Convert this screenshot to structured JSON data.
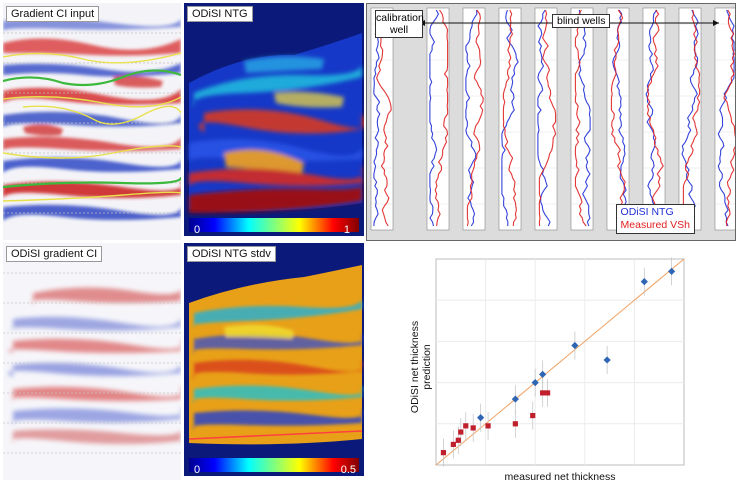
{
  "panels": {
    "gradient_ci_input": {
      "label": "Gradient CI input"
    },
    "odisi_ntg": {
      "label": "ODiSI NTG",
      "cbar_min": "0",
      "cbar_max": "1"
    },
    "odisi_gradient_ci": {
      "label": "ODiSI gradient CI"
    },
    "odisi_ntg_stdv": {
      "label": "ODiSI NTG stdv",
      "cbar_min": "0",
      "cbar_max": "0.5"
    }
  },
  "wells": {
    "calibration_label_1": "calibration",
    "calibration_label_2": "well",
    "blind_label": "blind wells",
    "legend_ntg": "ODiSI NTG",
    "legend_vsh": "Measured VSh",
    "colors": {
      "ntg": "#1f2fd6",
      "vsh": "#e02020"
    }
  },
  "chart_data": {
    "type": "scatter",
    "xlabel": "measured net thickness",
    "ylabel_1": "ODiSI net thickness",
    "ylabel_2": "prediction",
    "xlim": [
      0,
      10
    ],
    "ylim": [
      0,
      10
    ],
    "series": [
      {
        "marker": "square",
        "color": "#c0202c",
        "points": [
          [
            0.3,
            0.6
          ],
          [
            0.7,
            1.0
          ],
          [
            0.9,
            1.2
          ],
          [
            1.0,
            1.6
          ],
          [
            1.2,
            1.9
          ],
          [
            1.5,
            1.8
          ],
          [
            2.1,
            1.9
          ],
          [
            3.2,
            2.0
          ],
          [
            3.9,
            2.4
          ],
          [
            4.3,
            3.5
          ],
          [
            4.5,
            3.5
          ]
        ]
      },
      {
        "marker": "diamond",
        "color": "#2f66b4",
        "points": [
          [
            1.8,
            2.3
          ],
          [
            3.2,
            3.2
          ],
          [
            4.0,
            4.0
          ],
          [
            4.3,
            4.4
          ],
          [
            5.6,
            5.8
          ],
          [
            6.9,
            5.1
          ],
          [
            8.4,
            8.9
          ],
          [
            9.5,
            9.4
          ]
        ]
      }
    ]
  }
}
